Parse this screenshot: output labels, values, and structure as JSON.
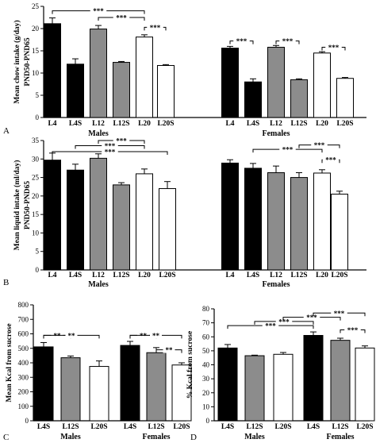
{
  "panels": {
    "A": {
      "label": "A"
    },
    "B": {
      "label": "B"
    },
    "C": {
      "label": "C"
    },
    "D": {
      "label": "D"
    }
  },
  "colors": {
    "black": "#000000",
    "gray": "#8c8c8c",
    "white": "#ffffff"
  },
  "chart_data": [
    {
      "id": "A",
      "type": "bar",
      "ylabel": [
        "Mean chow intake (g/day)",
        "PND50-PND65"
      ],
      "ylim": [
        0,
        25
      ],
      "yticks": [
        0,
        5,
        10,
        15,
        20,
        25
      ],
      "categories": [
        "L4",
        "L4S",
        "L12",
        "L12S",
        "L20",
        "L20S",
        "L4",
        "L4S",
        "L12",
        "L12S",
        "L20",
        "L20S"
      ],
      "fills": [
        "black",
        "black",
        "gray",
        "gray",
        "white",
        "white",
        "black",
        "black",
        "gray",
        "gray",
        "white",
        "white"
      ],
      "values": [
        21.1,
        12.0,
        19.9,
        12.4,
        18.1,
        11.7,
        15.6,
        8.0,
        15.8,
        8.5,
        14.5,
        8.8
      ],
      "errors": [
        1.3,
        1.2,
        0.8,
        0.2,
        0.5,
        0.2,
        0.4,
        0.7,
        0.4,
        0.2,
        0.3,
        0.2
      ],
      "groups": [
        "Males",
        "Females"
      ],
      "significance": [
        {
          "from": 0,
          "to": 4,
          "level": 24.0,
          "stars": "***"
        },
        {
          "from": 2,
          "to": 4,
          "level": 22.5,
          "stars": "***"
        },
        {
          "from": 4,
          "to": 5,
          "level": 20.3,
          "stars": "***"
        },
        {
          "from": 6,
          "to": 7,
          "level": 17.2,
          "stars": "***"
        },
        {
          "from": 8,
          "to": 9,
          "level": 17.2,
          "stars": "***"
        },
        {
          "from": 10,
          "to": 11,
          "level": 15.8,
          "stars": "***"
        }
      ]
    },
    {
      "id": "B",
      "type": "bar",
      "ylabel": [
        "Mean liquid intake (ml/day)",
        "PND50-PND65"
      ],
      "ylim": [
        0,
        35
      ],
      "yticks": [
        0,
        5,
        10,
        15,
        20,
        25,
        30,
        35
      ],
      "categories": [
        "L4",
        "L4S",
        "L12",
        "L12S",
        "L20",
        "L20S",
        "L4",
        "L4S",
        "L12",
        "L12S",
        "L20",
        "L20S"
      ],
      "fills": [
        "black",
        "black",
        "gray",
        "gray",
        "white",
        "white",
        "black",
        "black",
        "gray",
        "gray",
        "white",
        "white"
      ],
      "values": [
        29.7,
        27.0,
        30.2,
        23.0,
        26.0,
        22.0,
        28.9,
        27.5,
        26.3,
        25.0,
        26.2,
        20.5
      ],
      "errors": [
        1.9,
        1.6,
        1.2,
        0.6,
        1.3,
        1.9,
        0.9,
        1.3,
        1.8,
        1.3,
        0.9,
        0.8
      ],
      "groups": [
        "Males",
        "Females"
      ],
      "significance": [
        {
          "from": 2,
          "to": 4,
          "level": 35.0,
          "stars": "***"
        },
        {
          "from": 1,
          "to": 4,
          "level": 33.6,
          "stars": "***"
        },
        {
          "from": 0,
          "to": 5,
          "level": 32.0,
          "stars": "***"
        },
        {
          "from": 7,
          "to": 10,
          "level": 32.6,
          "stars": "***"
        },
        {
          "from": 9,
          "to": 11,
          "level": 33.8,
          "stars": "***"
        },
        {
          "from": 10,
          "to": 11,
          "level": 29.8,
          "stars": "***"
        }
      ]
    },
    {
      "id": "C",
      "type": "bar",
      "ylabel": [
        "Mean Kcal from sucrose"
      ],
      "ylim": [
        0,
        800
      ],
      "yticks": [
        0,
        100,
        200,
        300,
        400,
        500,
        600,
        700,
        800
      ],
      "categories": [
        "L4S",
        "L12S",
        "L20S",
        "L4S",
        "L12S",
        "L20S"
      ],
      "fills": [
        "black",
        "gray",
        "white",
        "black",
        "gray",
        "white"
      ],
      "values": [
        510,
        435,
        375,
        520,
        470,
        385
      ],
      "errors": [
        30,
        12,
        38,
        28,
        35,
        15
      ],
      "groups": [
        "Males",
        "Females"
      ],
      "significance": [
        {
          "from": 0,
          "to": 1,
          "level": 590,
          "stars": "**"
        },
        {
          "from": 0,
          "to": 2,
          "level": 590,
          "stars": "**"
        },
        {
          "from": 3,
          "to": 4,
          "level": 590,
          "stars": "**"
        },
        {
          "from": 3,
          "to": 5,
          "level": 590,
          "stars": "**"
        },
        {
          "from": 4,
          "to": 5,
          "level": 490,
          "stars": "**"
        }
      ]
    },
    {
      "id": "D",
      "type": "bar",
      "ylabel": [
        "% Kcal from sucrose"
      ],
      "ylim": [
        0,
        80
      ],
      "yticks": [
        0,
        10,
        20,
        30,
        40,
        50,
        60,
        70,
        80
      ],
      "categories": [
        "L4S",
        "L12S",
        "L20S",
        "L4S",
        "L12S",
        "L20S"
      ],
      "fills": [
        "black",
        "gray",
        "white",
        "black",
        "gray",
        "white"
      ],
      "values": [
        52,
        46.5,
        47.5,
        61,
        57.5,
        52
      ],
      "errors": [
        2.5,
        0.4,
        1.3,
        2.5,
        1.5,
        1.5
      ],
      "groups": [
        "Males",
        "Females"
      ],
      "significance": [
        {
          "from": 0,
          "to": 3,
          "level": 68,
          "stars": "***"
        },
        {
          "from": 1,
          "to": 3,
          "level": 71,
          "stars": "***"
        },
        {
          "from": 2,
          "to": 4,
          "level": 74,
          "stars": "***"
        },
        {
          "from": 3,
          "to": 5,
          "level": 77,
          "stars": "***"
        },
        {
          "from": 4,
          "to": 5,
          "level": 65,
          "stars": "***"
        }
      ]
    }
  ]
}
